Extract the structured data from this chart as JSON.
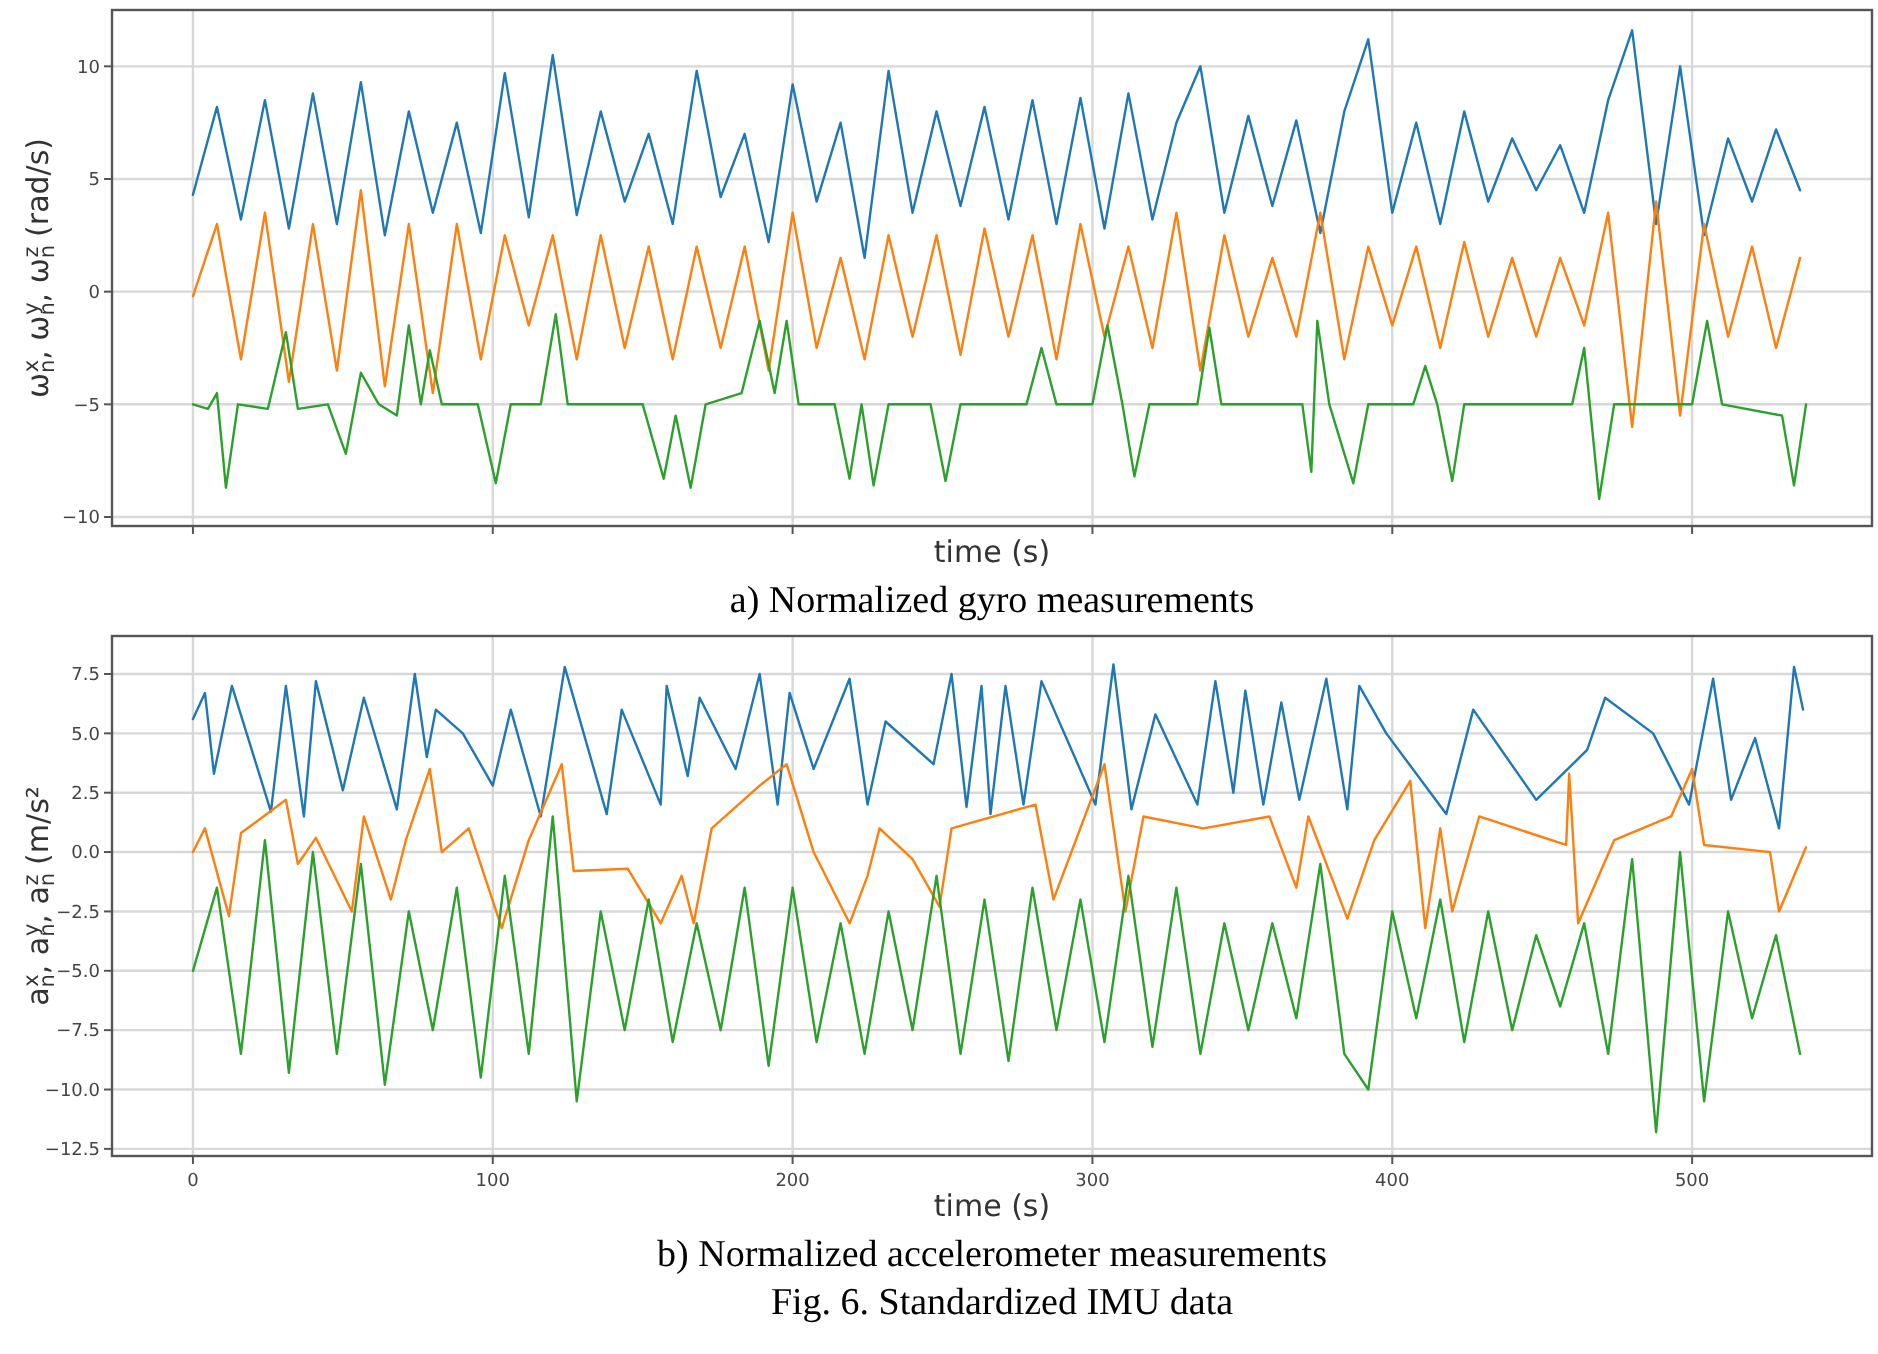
{
  "chart_data": [
    {
      "type": "line",
      "title": "a) Normalized gyro measurements",
      "xlabel": "time (s)",
      "ylabel": "ω$_{n}$$^{x}$, ω$_{n}$$^{y}$, ω$_{n}$$^{z}$ (rad/s)",
      "xlim": [
        -27,
        560
      ],
      "ylim": [
        -10.4,
        12.5
      ],
      "xticks": [
        0,
        100,
        200,
        300,
        400,
        500
      ],
      "yticks": [
        {
          "value": -10,
          "label": "−10"
        },
        {
          "value": -5,
          "label": "−5"
        },
        0,
        5,
        10
      ],
      "grid": true,
      "tick_labels": "y",
      "series": [
        {
          "color": "#1f77b4",
          "x": [
            0,
            8,
            16,
            24,
            32,
            40,
            48,
            56,
            64,
            72,
            80,
            88,
            96,
            104,
            112,
            120,
            128,
            136,
            144,
            152,
            160,
            168,
            176,
            184,
            192,
            200,
            208,
            216,
            224,
            232,
            240,
            248,
            256,
            264,
            272,
            280,
            288,
            296,
            304,
            312,
            320,
            328,
            336,
            344,
            352,
            360,
            368,
            376,
            384,
            392,
            400,
            408,
            416,
            424,
            432,
            440,
            448,
            456,
            464,
            472,
            480,
            488,
            496,
            504,
            512,
            520,
            528,
            536
          ],
          "values": [
            4.3,
            8.2,
            3.2,
            8.5,
            2.8,
            8.8,
            3.0,
            9.3,
            2.5,
            8.0,
            3.5,
            7.5,
            2.6,
            9.7,
            3.3,
            10.5,
            3.4,
            8.0,
            4.0,
            7.0,
            3.0,
            9.8,
            4.2,
            7.0,
            2.2,
            9.2,
            4.0,
            7.5,
            1.5,
            9.8,
            3.5,
            8.0,
            3.8,
            8.2,
            3.2,
            8.5,
            3.0,
            8.6,
            2.8,
            8.8,
            3.2,
            7.5,
            10.0,
            3.5,
            7.8,
            3.8,
            7.6,
            2.6,
            8.0,
            11.2,
            3.5,
            7.5,
            3.0,
            8.0,
            4.0,
            6.8,
            4.5,
            6.5,
            3.5,
            8.5,
            11.6,
            3.0,
            10.0,
            2.5,
            6.8,
            4.0,
            7.2,
            4.5
          ]
        },
        {
          "color": "#ff7f0e",
          "x": [
            0,
            8,
            16,
            24,
            32,
            40,
            48,
            56,
            64,
            72,
            80,
            88,
            96,
            104,
            112,
            120,
            128,
            136,
            144,
            152,
            160,
            168,
            176,
            184,
            192,
            200,
            208,
            216,
            224,
            232,
            240,
            248,
            256,
            264,
            272,
            280,
            288,
            296,
            304,
            312,
            320,
            328,
            336,
            344,
            352,
            360,
            368,
            376,
            384,
            392,
            400,
            408,
            416,
            424,
            432,
            440,
            448,
            456,
            464,
            472,
            480,
            488,
            496,
            504,
            512,
            520,
            528,
            536
          ],
          "values": [
            -0.2,
            3.0,
            -3.0,
            3.5,
            -4.0,
            3.0,
            -3.5,
            4.5,
            -4.2,
            3.0,
            -4.5,
            3.0,
            -3.0,
            2.5,
            -1.5,
            2.5,
            -3.0,
            2.5,
            -2.5,
            2.0,
            -3.0,
            2.0,
            -2.5,
            2.0,
            -3.5,
            3.5,
            -2.5,
            1.5,
            -3.0,
            2.5,
            -2.0,
            2.5,
            -2.8,
            2.8,
            -2.0,
            2.5,
            -3.0,
            3.0,
            -2.0,
            2.0,
            -2.5,
            3.5,
            -3.5,
            2.5,
            -2.0,
            1.5,
            -2.0,
            3.5,
            -3.0,
            2.0,
            -1.5,
            2.0,
            -2.5,
            2.2,
            -2.0,
            1.5,
            -2.0,
            1.5,
            -1.5,
            3.5,
            -6.0,
            4.0,
            -5.5,
            3.0,
            -2.0,
            2.0,
            -2.5,
            1.5
          ]
        },
        {
          "color": "#2ca02c",
          "x": [
            0,
            5,
            8,
            11,
            15,
            25,
            31,
            35,
            45,
            51,
            56,
            62,
            68,
            72,
            76,
            79,
            83,
            95,
            101,
            106,
            116,
            121,
            125,
            150,
            157,
            161,
            166,
            171,
            183,
            189,
            194,
            198,
            202,
            214,
            219,
            223,
            227,
            232,
            246,
            251,
            256,
            278,
            283,
            288,
            300,
            305,
            310,
            314,
            319,
            335,
            339,
            343,
            370,
            373,
            375,
            379,
            387,
            392,
            407,
            411,
            415,
            420,
            424,
            460,
            464,
            469,
            474,
            500,
            505,
            510,
            530,
            534,
            538
          ],
          "values": [
            -5,
            -5.2,
            -4.5,
            -8.7,
            -5,
            -5.2,
            -1.8,
            -5.2,
            -5,
            -7.2,
            -3.6,
            -5,
            -5.5,
            -1.5,
            -5,
            -2.6,
            -5,
            -5,
            -8.5,
            -5,
            -5,
            -1,
            -5,
            -5,
            -8.3,
            -5.5,
            -8.7,
            -5,
            -4.5,
            -1.3,
            -4.5,
            -1.3,
            -5,
            -5,
            -8.3,
            -5,
            -8.6,
            -5,
            -5,
            -8.4,
            -5,
            -5,
            -2.5,
            -5,
            -5,
            -1.5,
            -5,
            -8.2,
            -5,
            -5,
            -1.6,
            -5,
            -5,
            -8,
            -1.3,
            -5,
            -8.5,
            -5,
            -5,
            -3.3,
            -5,
            -8.4,
            -5,
            -5,
            -2.5,
            -9.2,
            -5,
            -5,
            -1.3,
            -5,
            -5.5,
            -8.6,
            -5
          ]
        }
      ]
    },
    {
      "type": "line",
      "title": "b) Normalized accelerometer measurements",
      "xlabel": "time (s)",
      "ylabel": "a$_{n}$$^{x}$, a$_{n}$$^{y}$, a$_{n}$$^{z}$ (m/s²",
      "annotations": [
        "Fig. 6. Standardized IMU data"
      ],
      "xlim": [
        -27,
        560
      ],
      "ylim": [
        -12.8,
        9.1
      ],
      "xticks": [
        0,
        100,
        200,
        300,
        400,
        500
      ],
      "yticks": [
        {
          "value": -12.5,
          "label": "−12.5"
        },
        {
          "value": -10,
          "label": "−10.0"
        },
        {
          "value": -7.5,
          "label": "−7.5"
        },
        {
          "value": -5,
          "label": "−5.0"
        },
        {
          "value": -2.5,
          "label": "−2.5"
        },
        {
          "value": 0,
          "label": "0.0"
        },
        2.5,
        {
          "value": 5,
          "label": "5.0"
        },
        7.5
      ],
      "grid": true,
      "series": [
        {
          "color": "#1f77b4",
          "x": [
            0,
            4,
            7,
            13,
            26,
            31,
            37,
            41,
            50,
            57,
            68,
            74,
            78,
            81,
            90,
            100,
            106,
            116,
            124,
            138,
            143,
            156,
            158,
            165,
            169,
            181,
            189,
            195,
            199,
            207,
            219,
            225,
            231,
            247,
            253,
            258,
            263,
            266,
            271,
            277,
            283,
            301,
            307,
            313,
            321,
            335,
            341,
            347,
            351,
            357,
            363,
            369,
            378,
            385,
            389,
            398,
            418,
            427,
            448,
            465,
            471,
            487,
            499,
            507,
            513,
            521,
            529,
            534,
            537
          ],
          "values": [
            5.6,
            6.7,
            3.3,
            7.0,
            1.7,
            7.0,
            1.5,
            7.2,
            2.6,
            6.5,
            1.8,
            7.5,
            4.0,
            6.0,
            5.0,
            2.8,
            6.0,
            1.5,
            7.8,
            1.6,
            6.0,
            2.0,
            7.0,
            3.2,
            6.5,
            3.5,
            7.5,
            2.0,
            6.7,
            3.5,
            7.3,
            2.0,
            5.5,
            3.7,
            7.5,
            1.9,
            7.0,
            1.6,
            7.0,
            2.0,
            7.2,
            2.0,
            7.9,
            1.8,
            5.8,
            2.0,
            7.2,
            2.5,
            6.8,
            2.0,
            6.3,
            2.2,
            7.3,
            1.8,
            7.0,
            5.0,
            1.6,
            6.0,
            2.2,
            4.3,
            6.5,
            5.0,
            2.0,
            7.3,
            2.2,
            4.8,
            1.0,
            7.8,
            6.0
          ]
        },
        {
          "color": "#ff7f0e",
          "x": [
            0,
            4,
            12,
            16,
            31,
            35,
            41,
            53,
            57,
            66,
            71,
            79,
            83,
            92,
            103,
            112,
            123,
            127,
            145,
            156,
            163,
            167,
            173,
            189,
            198,
            207,
            219,
            225,
            229,
            240,
            249,
            253,
            281,
            287,
            304,
            311,
            317,
            337,
            359,
            368,
            372,
            385,
            394,
            406,
            411,
            416,
            420,
            429,
            458,
            459,
            462,
            474,
            493,
            500,
            504,
            526,
            529,
            538
          ],
          "values": [
            0,
            1.0,
            -2.7,
            0.8,
            2.2,
            -0.5,
            0.6,
            -2.5,
            1.5,
            -2.0,
            0.5,
            3.5,
            0,
            1.0,
            -3.2,
            0.5,
            3.7,
            -0.8,
            -0.7,
            -3.0,
            -1.0,
            -3.0,
            1.0,
            2.8,
            3.7,
            0,
            -3.0,
            -1.0,
            1.0,
            -0.3,
            -2.3,
            1.0,
            2.0,
            -2.0,
            3.7,
            -2.5,
            1.5,
            1.0,
            1.5,
            -1.5,
            1.5,
            -2.8,
            0.5,
            3.0,
            -3.2,
            1.0,
            -2.5,
            1.5,
            0.3,
            3.3,
            -3.0,
            0.5,
            1.5,
            3.5,
            0.3,
            0,
            -2.5,
            0.2
          ]
        },
        {
          "color": "#2ca02c",
          "x": [
            0,
            8,
            16,
            24,
            32,
            40,
            48,
            56,
            64,
            72,
            80,
            88,
            96,
            104,
            112,
            120,
            128,
            136,
            144,
            152,
            160,
            168,
            176,
            184,
            192,
            200,
            208,
            216,
            224,
            232,
            240,
            248,
            256,
            264,
            272,
            280,
            288,
            296,
            304,
            312,
            320,
            328,
            336,
            344,
            352,
            360,
            368,
            376,
            384,
            392,
            400,
            408,
            416,
            424,
            432,
            440,
            448,
            456,
            464,
            472,
            480,
            488,
            496,
            504,
            512,
            520,
            528,
            536
          ],
          "values": [
            -5,
            -1.5,
            -8.5,
            0.5,
            -9.3,
            0,
            -8.5,
            -0.5,
            -9.8,
            -2.5,
            -7.5,
            -1.5,
            -9.5,
            -1.0,
            -8.5,
            1.5,
            -10.5,
            -2.5,
            -7.5,
            -2.0,
            -8.0,
            -3.0,
            -7.5,
            -1.5,
            -9.0,
            -1.5,
            -8.0,
            -3.0,
            -8.5,
            -2.5,
            -7.5,
            -1.0,
            -8.5,
            -2.0,
            -8.8,
            -1.5,
            -7.5,
            -2.0,
            -8.0,
            -1.0,
            -8.2,
            -1.5,
            -8.5,
            -3.0,
            -7.5,
            -3.0,
            -7.0,
            -0.5,
            -8.5,
            -10.0,
            -2.5,
            -7.0,
            -2.0,
            -8.0,
            -2.5,
            -7.5,
            -3.5,
            -6.5,
            -3.0,
            -8.5,
            -0.3,
            -11.8,
            0,
            -10.5,
            -2.5,
            -7.0,
            -3.5,
            -8.5
          ]
        }
      ]
    }
  ]
}
